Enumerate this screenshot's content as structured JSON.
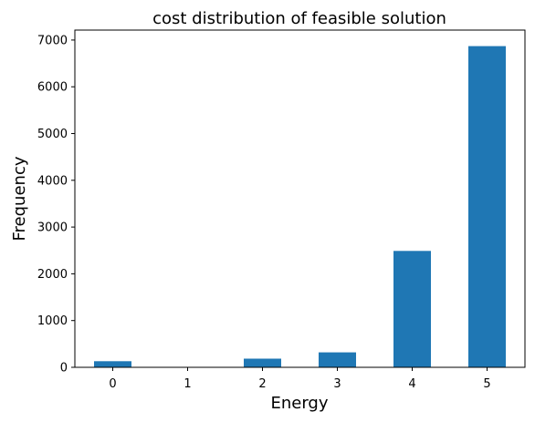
{
  "chart_data": {
    "type": "bar",
    "title": "cost distribution of feasible solution",
    "xlabel": "Energy",
    "ylabel": "Frequency",
    "categories": [
      "0",
      "1",
      "2",
      "3",
      "4",
      "5"
    ],
    "values": [
      130,
      0,
      185,
      320,
      2490,
      6870
    ],
    "ylim": [
      0,
      7213
    ],
    "yticks": [
      "0",
      "1000",
      "2000",
      "3000",
      "4000",
      "5000",
      "6000",
      "7000"
    ],
    "grid": false,
    "bar_color": "#1f77b4"
  }
}
